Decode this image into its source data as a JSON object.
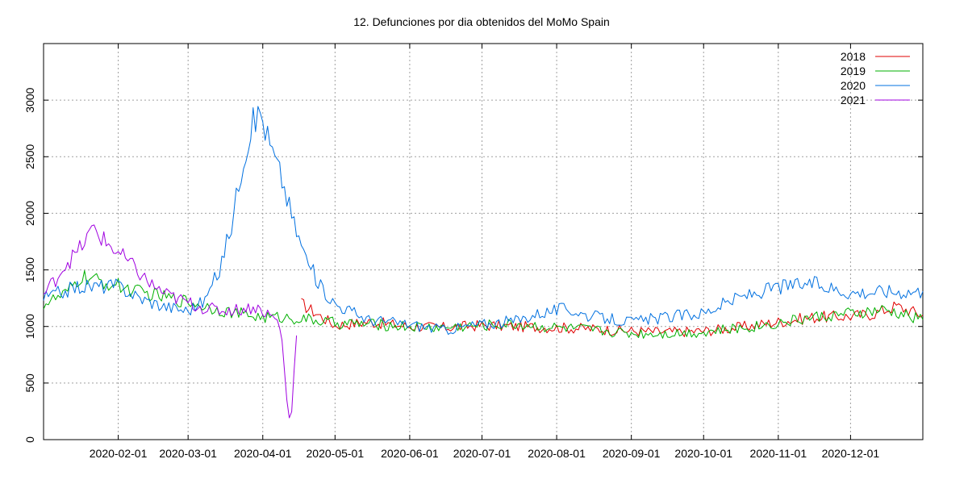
{
  "chart_data": {
    "type": "line",
    "title": "12. Defunciones por dia obtenidos del MoMo Spain",
    "xlabel": "",
    "ylabel": "",
    "grid": true,
    "legend_position": "top-right",
    "x_range": [
      "2020-01-01",
      "2020-12-31"
    ],
    "ylim": [
      0,
      3500
    ],
    "y_ticks": [
      0,
      500,
      1000,
      1500,
      2000,
      2500,
      3000
    ],
    "x_ticks": [
      "2020-02-01",
      "2020-03-01",
      "2020-04-01",
      "2020-05-01",
      "2020-06-01",
      "2020-07-01",
      "2020-08-01",
      "2020-09-01",
      "2020-10-01",
      "2020-11-01",
      "2020-12-01"
    ],
    "series": [
      {
        "name": "2018",
        "color": "#e00000",
        "x": [
          "2020-04-17",
          "2020-05-01",
          "2020-05-15",
          "2020-06-01",
          "2020-06-15",
          "2020-07-01",
          "2020-07-15",
          "2020-08-01",
          "2020-08-15",
          "2020-09-01",
          "2020-09-15",
          "2020-10-01",
          "2020-10-15",
          "2020-11-01",
          "2020-11-15",
          "2020-12-01",
          "2020-12-10",
          "2020-12-20",
          "2020-12-31"
        ],
        "y": [
          1200,
          1010,
          1040,
          1000,
          990,
          1010,
          1000,
          990,
          980,
          960,
          950,
          960,
          990,
          1040,
          1080,
          1090,
          1110,
          1180,
          1100
        ]
      },
      {
        "name": "2019",
        "color": "#00b000",
        "x": [
          "2020-01-01",
          "2020-01-10",
          "2020-01-17",
          "2020-01-25",
          "2020-02-01",
          "2020-02-10",
          "2020-02-20",
          "2020-03-01",
          "2020-03-10",
          "2020-03-20",
          "2020-04-01",
          "2020-04-10",
          "2020-04-20",
          "2020-05-01",
          "2020-05-15",
          "2020-06-01",
          "2020-06-15",
          "2020-07-01",
          "2020-07-15",
          "2020-08-01",
          "2020-08-15",
          "2020-09-01",
          "2020-09-15",
          "2020-10-01",
          "2020-10-15",
          "2020-11-01",
          "2020-11-15",
          "2020-12-01",
          "2020-12-15",
          "2020-12-31"
        ],
        "y": [
          1200,
          1280,
          1440,
          1390,
          1360,
          1300,
          1260,
          1220,
          1170,
          1120,
          1080,
          1080,
          1060,
          1030,
          1020,
          1000,
          990,
          1010,
          1020,
          990,
          970,
          940,
          940,
          950,
          980,
          1030,
          1080,
          1110,
          1140,
          1060
        ]
      },
      {
        "name": "2020",
        "color": "#0070e0",
        "x": [
          "2020-01-01",
          "2020-01-15",
          "2020-02-01",
          "2020-02-10",
          "2020-02-20",
          "2020-03-01",
          "2020-03-08",
          "2020-03-14",
          "2020-03-19",
          "2020-03-24",
          "2020-03-28",
          "2020-03-31",
          "2020-04-04",
          "2020-04-09",
          "2020-04-14",
          "2020-04-19",
          "2020-04-25",
          "2020-05-01",
          "2020-05-15",
          "2020-06-01",
          "2020-06-15",
          "2020-07-01",
          "2020-07-15",
          "2020-07-25",
          "2020-08-05",
          "2020-08-15",
          "2020-09-01",
          "2020-09-15",
          "2020-10-01",
          "2020-10-15",
          "2020-11-01",
          "2020-11-15",
          "2020-12-01",
          "2020-12-15",
          "2020-12-31"
        ],
        "y": [
          1250,
          1350,
          1360,
          1250,
          1180,
          1140,
          1230,
          1500,
          1900,
          2500,
          2800,
          2900,
          2600,
          2300,
          1900,
          1600,
          1350,
          1200,
          1060,
          1020,
          970,
          1020,
          1050,
          1120,
          1160,
          1090,
          1040,
          1080,
          1120,
          1250,
          1350,
          1380,
          1300,
          1310,
          1310
        ]
      },
      {
        "name": "2021",
        "color": "#a000e0",
        "x": [
          "2020-01-01",
          "2020-01-06",
          "2020-01-10",
          "2020-01-15",
          "2020-01-19",
          "2020-01-22",
          "2020-01-26",
          "2020-02-01",
          "2020-02-07",
          "2020-02-14",
          "2020-02-21",
          "2020-03-01",
          "2020-03-08",
          "2020-03-15",
          "2020-03-22",
          "2020-03-29",
          "2020-04-04",
          "2020-04-07",
          "2020-04-09",
          "2020-04-10",
          "2020-04-11",
          "2020-04-12",
          "2020-04-13",
          "2020-04-14",
          "2020-04-15"
        ],
        "y": [
          1280,
          1420,
          1550,
          1650,
          1780,
          1870,
          1760,
          1650,
          1530,
          1380,
          1280,
          1210,
          1160,
          1140,
          1150,
          1170,
          1100,
          1050,
          900,
          600,
          350,
          200,
          250,
          600,
          920
        ]
      }
    ]
  }
}
